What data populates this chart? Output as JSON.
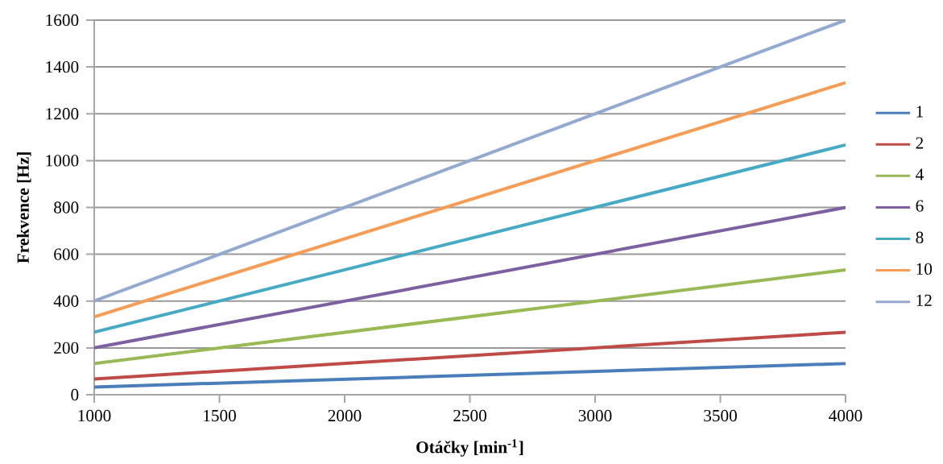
{
  "chart_data": {
    "type": "line",
    "xlabel": "Otáčky [min$^{-1}$]",
    "ylabel": "Frekvence [Hz]",
    "x": [
      1000,
      4000
    ],
    "series": [
      {
        "name": "1",
        "color": "#4a7ebb",
        "values": [
          33,
          133
        ]
      },
      {
        "name": "2",
        "color": "#be4b48",
        "values": [
          67,
          267
        ]
      },
      {
        "name": "4",
        "color": "#98b954",
        "values": [
          133,
          533
        ]
      },
      {
        "name": "6",
        "color": "#7d60a0",
        "values": [
          200,
          800
        ]
      },
      {
        "name": "8",
        "color": "#46aac5",
        "values": [
          267,
          1067
        ]
      },
      {
        "name": "10",
        "color": "#f59d56",
        "values": [
          333,
          1333
        ]
      },
      {
        "name": "12",
        "color": "#93a9cf",
        "values": [
          400,
          1600
        ]
      }
    ],
    "xlim": [
      1000,
      4000
    ],
    "xticks": [
      1000,
      1500,
      2000,
      2500,
      3000,
      3500,
      4000
    ],
    "ylim": [
      0,
      1600
    ],
    "yticks": [
      0,
      200,
      400,
      600,
      800,
      1000,
      1200,
      1400,
      1600
    ],
    "grid": "y",
    "legend": "right",
    "marker": "none",
    "line_style": "solid"
  }
}
